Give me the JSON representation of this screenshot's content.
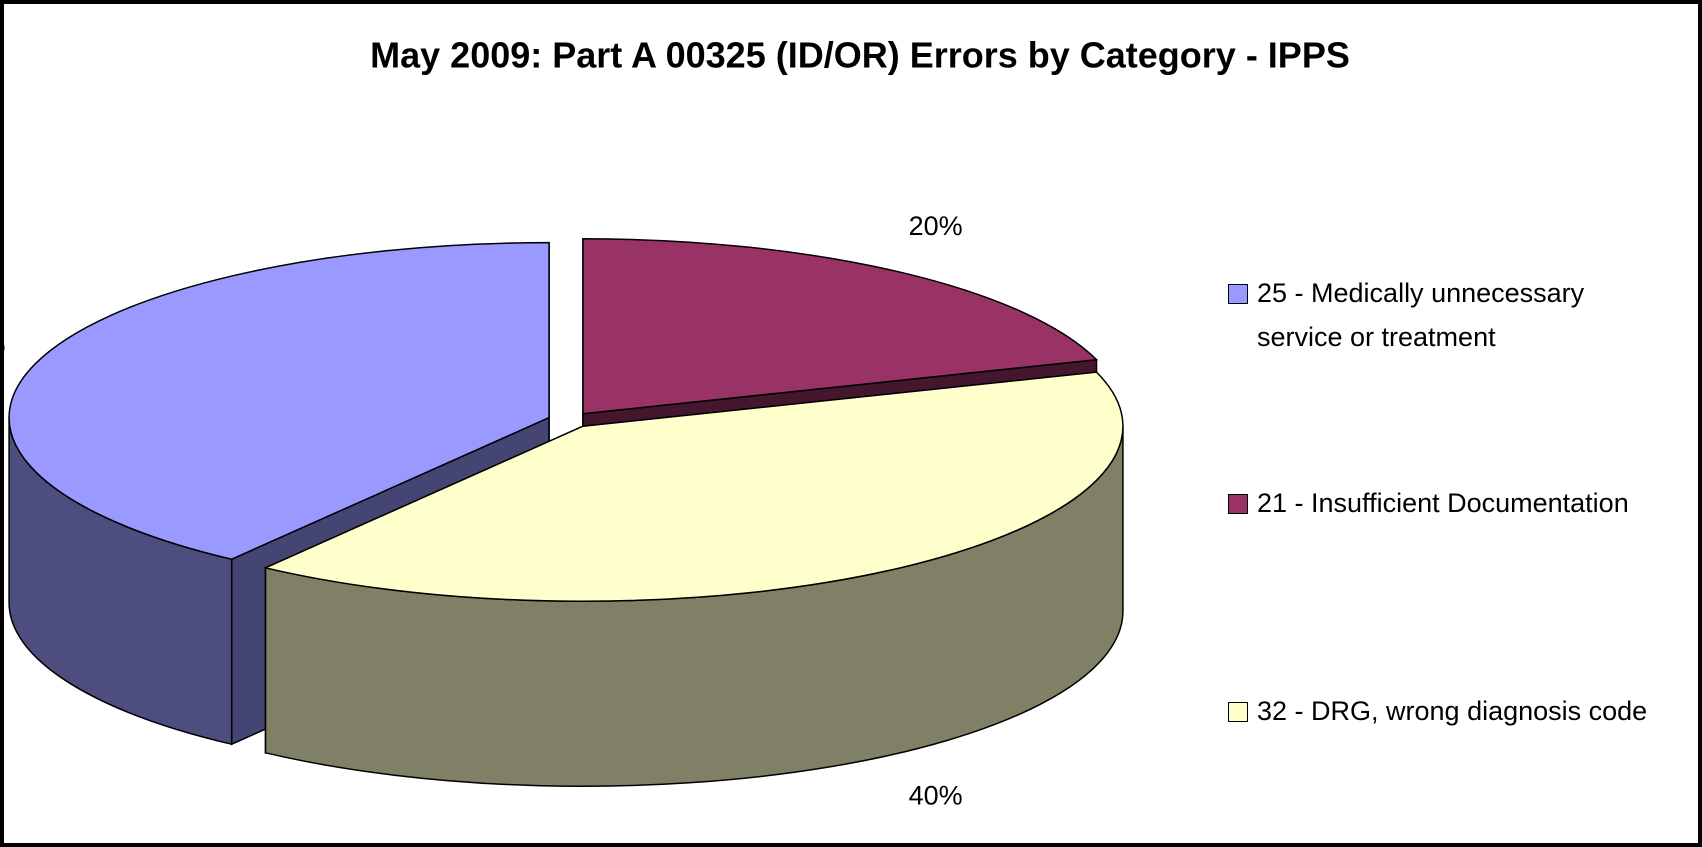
{
  "chart_data": {
    "type": "pie",
    "title": "May 2009: Part A 00325 (ID/OR) Errors by Category - IPPS",
    "categories": [
      "25 - Medically unnecessary service or treatment",
      "21 - Insufficient Documentation",
      "32 - DRG, wrong diagnosis code"
    ],
    "values": [
      40,
      20,
      40
    ],
    "value_labels": [
      "40%",
      "20%",
      "40%"
    ],
    "colors": [
      "#9999ff",
      "#993366",
      "#ffffcc"
    ],
    "legend": "right",
    "three_d": true,
    "exploded": true
  }
}
